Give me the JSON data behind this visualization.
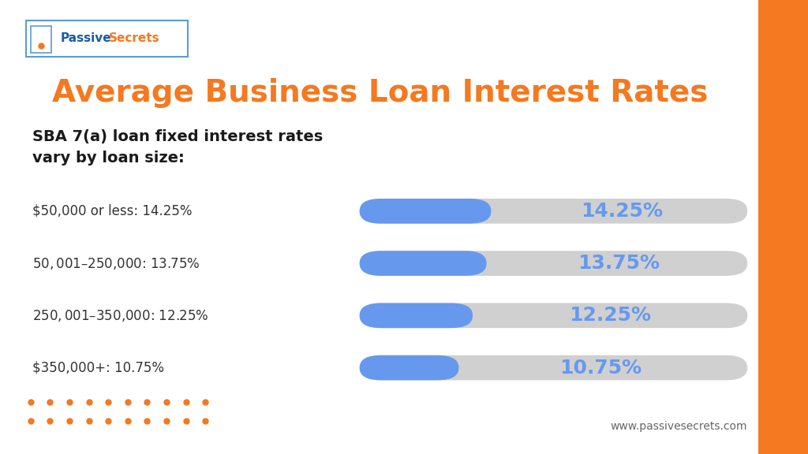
{
  "title": "Average Business Loan Interest Rates",
  "subtitle": "SBA 7(a) loan fixed interest rates\nvary by loan size:",
  "categories": [
    "$50,000 or less: 14.25%",
    "$50,001 – $250,000: 13.75%",
    "$250,001 – $350,000: 12.25%",
    "$350,000+: 10.75%"
  ],
  "values": [
    14.25,
    13.75,
    12.25,
    10.75
  ],
  "max_value": 20.0,
  "labels": [
    "14.25%",
    "13.75%",
    "12.25%",
    "10.75%"
  ],
  "bar_bg_color": "#d0d0d0",
  "bar_fill_color": "#6699ee",
  "title_color": "#f47920",
  "subtitle_color": "#1a1a1a",
  "category_text_color": "#333333",
  "label_color": "#6699ee",
  "background_color": "#ffffff",
  "orange_stripe_color": "#f47920",
  "dot_color": "#f47920",
  "website_text": "www.passivesecrets.com",
  "website_color": "#666666",
  "logo_border_color": "#5b9bd5",
  "logo_passive_color": "#1a5ba8",
  "logo_secrets_color": "#f47920"
}
